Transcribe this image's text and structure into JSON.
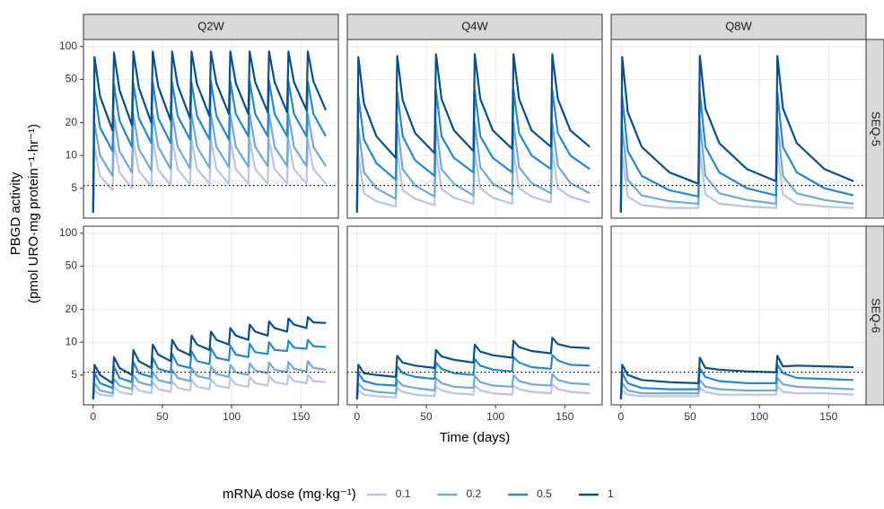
{
  "figure": {
    "ylabel": "PBGD activity",
    "ylabel2": "(pmol URO·mg protein⁻¹·hr⁻¹)",
    "xlabel": "Time (days)",
    "legend_title": "mRNA dose (mg·kg⁻¹)",
    "columns": [
      "Q2W",
      "Q4W",
      "Q8W"
    ],
    "rows": [
      "SEQ-5",
      "SEQ-6"
    ]
  },
  "chart_data": [
    {
      "type": "line",
      "log_y": true,
      "grid": true,
      "xlim": [
        -7,
        177
      ],
      "ylim": [
        2.66,
        116
      ],
      "xticks": [
        0,
        50,
        100,
        150
      ],
      "yticks": [
        5,
        10,
        20,
        50,
        100
      ],
      "hline": 5.3,
      "x": [
        0,
        1,
        5,
        14,
        15,
        19,
        28,
        29,
        33,
        42,
        43,
        47,
        56,
        57,
        61,
        70,
        71,
        75,
        84,
        85,
        89,
        98,
        99,
        103,
        112,
        113,
        117,
        126,
        127,
        131,
        140,
        141,
        145,
        154,
        155,
        159,
        168
      ],
      "series": [
        {
          "name": "0.1",
          "color": "#bcc6e3",
          "values": [
            3,
            12,
            6.5,
            4.8,
            13,
            7,
            5,
            13.5,
            7.2,
            5.2,
            14,
            7.4,
            5.3,
            14,
            7.5,
            5.4,
            14,
            7.5,
            5.5,
            14,
            7.5,
            5.5,
            14,
            7.5,
            5.5,
            14,
            7.5,
            5.5,
            14,
            7.5,
            5.5,
            14,
            7.5,
            5.5,
            14,
            7.5,
            5.5
          ]
        },
        {
          "name": "0.2",
          "color": "#74a9d4",
          "values": [
            3,
            20,
            10,
            6.5,
            23,
            11,
            7,
            24,
            11.5,
            7.3,
            24,
            12,
            7.5,
            24,
            12,
            7.6,
            24,
            12,
            7.7,
            24,
            12,
            7.8,
            24,
            12,
            7.9,
            24,
            12,
            8,
            24,
            12,
            8,
            24,
            12,
            8,
            24,
            12,
            8
          ]
        },
        {
          "name": "0.5",
          "color": "#2b88c5",
          "values": [
            3,
            40,
            18,
            11,
            45,
            21,
            12,
            46,
            22,
            13,
            47,
            22,
            13,
            47,
            23,
            14,
            47,
            23,
            14,
            48,
            23,
            14,
            48,
            24,
            15,
            48,
            24,
            15,
            48,
            24,
            15,
            48,
            24,
            15,
            48,
            24,
            15
          ]
        },
        {
          "name": "1",
          "color": "#0b4f8a",
          "values": [
            3,
            80,
            35,
            17,
            88,
            40,
            19,
            90,
            42,
            20,
            90,
            43,
            21,
            90,
            44,
            22,
            90,
            45,
            23,
            90,
            46,
            24,
            90,
            46,
            24,
            90,
            47,
            25,
            90,
            47,
            25,
            90,
            47,
            26,
            90,
            48,
            26
          ]
        }
      ]
    },
    {
      "type": "line",
      "log_y": true,
      "grid": true,
      "xlim": [
        -7,
        177
      ],
      "ylim": [
        2.66,
        116
      ],
      "xticks": [
        0,
        50,
        100,
        150
      ],
      "yticks": [
        5,
        10,
        20,
        50,
        100
      ],
      "hline": 5.3,
      "x": [
        0,
        1,
        5,
        14,
        28,
        29,
        33,
        42,
        56,
        57,
        61,
        70,
        84,
        85,
        89,
        98,
        112,
        113,
        117,
        126,
        140,
        141,
        145,
        154,
        168
      ],
      "series": [
        {
          "name": "0.1",
          "color": "#bcc6e3",
          "values": [
            3,
            10,
            4.5,
            3.8,
            3.4,
            11,
            4.8,
            4,
            3.5,
            11,
            4.9,
            4.1,
            3.6,
            11,
            5,
            4.1,
            3.6,
            11,
            5,
            4.2,
            3.7,
            11,
            5,
            4.2,
            3.7
          ]
        },
        {
          "name": "0.2",
          "color": "#74a9d4",
          "values": [
            3,
            18,
            7,
            5,
            4,
            20,
            7.5,
            5.3,
            4.2,
            20,
            7.5,
            5.5,
            4.3,
            20,
            7.8,
            5.5,
            4.4,
            20,
            7.8,
            5.6,
            4.5,
            20,
            8,
            5.6,
            4.5
          ]
        },
        {
          "name": "0.5",
          "color": "#2b88c5",
          "values": [
            3,
            35,
            14,
            8.5,
            6,
            38,
            15,
            9,
            6.5,
            40,
            15,
            9.5,
            7,
            40,
            15,
            9.5,
            7,
            40,
            16,
            10,
            7.5,
            40,
            16,
            10,
            7.5
          ]
        },
        {
          "name": "1",
          "color": "#0b4f8a",
          "values": [
            3,
            80,
            30,
            15,
            9.5,
            82,
            32,
            16,
            10.5,
            85,
            33,
            17,
            11,
            85,
            33,
            17,
            11.5,
            85,
            33,
            17,
            12,
            85,
            33,
            17,
            12
          ]
        }
      ]
    },
    {
      "type": "line",
      "log_y": true,
      "grid": true,
      "xlim": [
        -7,
        177
      ],
      "ylim": [
        2.66,
        116
      ],
      "xticks": [
        0,
        50,
        100,
        150
      ],
      "yticks": [
        5,
        10,
        20,
        50,
        100
      ],
      "hline": 5.3,
      "x": [
        0,
        1,
        5,
        15,
        35,
        56,
        57,
        61,
        71,
        91,
        112,
        113,
        117,
        127,
        147,
        168
      ],
      "series": [
        {
          "name": "0.1",
          "color": "#bcc6e3",
          "values": [
            3,
            10,
            4.2,
            3.5,
            3.3,
            3.3,
            11,
            4.4,
            3.6,
            3.4,
            3.3,
            11,
            4.4,
            3.6,
            3.4,
            3.3
          ]
        },
        {
          "name": "0.2",
          "color": "#74a9d4",
          "values": [
            3,
            18,
            6,
            4.3,
            3.8,
            3.6,
            20,
            6.5,
            4.5,
            3.9,
            3.6,
            20,
            6.5,
            4.5,
            3.9,
            3.6
          ]
        },
        {
          "name": "0.5",
          "color": "#2b88c5",
          "values": [
            3,
            35,
            11,
            6.5,
            4.8,
            4.2,
            38,
            12,
            7,
            5,
            4.3,
            38,
            12,
            7,
            5,
            4.3
          ]
        },
        {
          "name": "1",
          "color": "#0b4f8a",
          "values": [
            3,
            80,
            25,
            12,
            7,
            5.5,
            82,
            27,
            13,
            7.5,
            5.8,
            82,
            27,
            13,
            7.5,
            5.8
          ]
        }
      ]
    },
    {
      "type": "line",
      "log_y": true,
      "grid": true,
      "xlim": [
        -7,
        177
      ],
      "ylim": [
        2.66,
        116
      ],
      "xticks": [
        0,
        50,
        100,
        150
      ],
      "yticks": [
        5,
        10,
        20,
        50,
        100
      ],
      "hline": 5.3,
      "x": [
        0,
        1,
        5,
        14,
        15,
        19,
        28,
        29,
        33,
        42,
        43,
        47,
        56,
        57,
        61,
        70,
        71,
        75,
        84,
        85,
        89,
        98,
        99,
        103,
        112,
        113,
        117,
        126,
        127,
        131,
        140,
        141,
        145,
        154,
        155,
        159,
        168
      ],
      "series": [
        {
          "name": "0.1",
          "color": "#bcc6e3",
          "values": [
            3,
            3.6,
            3.3,
            3.2,
            3.9,
            3.5,
            3.3,
            4.1,
            3.6,
            3.4,
            4.3,
            3.7,
            3.5,
            4.4,
            3.8,
            3.6,
            4.5,
            3.9,
            3.7,
            4.6,
            4,
            3.8,
            4.7,
            4.1,
            3.9,
            4.8,
            4.2,
            4,
            4.9,
            4.3,
            4.1,
            5,
            4.4,
            4.2,
            5,
            4.4,
            4.3
          ]
        },
        {
          "name": "0.2",
          "color": "#74a9d4",
          "values": [
            3,
            4.2,
            3.6,
            3.4,
            4.6,
            4,
            3.7,
            5,
            4.3,
            4,
            5.3,
            4.5,
            4.2,
            5.6,
            4.7,
            4.4,
            5.8,
            4.9,
            4.6,
            6,
            5.1,
            4.8,
            6.2,
            5.3,
            5,
            6.4,
            5.5,
            5.2,
            6.5,
            5.6,
            5.3,
            6.6,
            5.7,
            5.4,
            6.7,
            5.8,
            5.6
          ]
        },
        {
          "name": "0.5",
          "color": "#2b88c5",
          "values": [
            3,
            5.2,
            4.2,
            3.8,
            6,
            4.7,
            4.3,
            6.6,
            5.2,
            4.8,
            7.2,
            5.7,
            5.3,
            7.8,
            6.2,
            5.8,
            8.3,
            6.7,
            6.3,
            8.8,
            7.2,
            6.8,
            9.3,
            7.7,
            7.3,
            9.7,
            8.1,
            7.8,
            10,
            8.5,
            8.3,
            10.3,
            8.9,
            8.7,
            10.5,
            9.2,
            9
          ]
        },
        {
          "name": "1",
          "color": "#0b4f8a",
          "values": [
            3,
            6.2,
            5,
            4.2,
            7.3,
            5.8,
            5,
            8.5,
            6.7,
            5.8,
            9.5,
            7.7,
            6.7,
            10.5,
            8.6,
            7.6,
            11.5,
            9.5,
            8.5,
            12.5,
            10.5,
            9.5,
            13.5,
            11.5,
            10.5,
            14.5,
            12.5,
            11.5,
            15.5,
            13.5,
            12.5,
            16.5,
            14.5,
            13.5,
            17,
            15.2,
            15
          ]
        }
      ]
    },
    {
      "type": "line",
      "log_y": true,
      "grid": true,
      "xlim": [
        -7,
        177
      ],
      "ylim": [
        2.66,
        116
      ],
      "xticks": [
        0,
        50,
        100,
        150
      ],
      "yticks": [
        5,
        10,
        20,
        50,
        100
      ],
      "hline": 5.3,
      "x": [
        0,
        1,
        5,
        14,
        28,
        29,
        33,
        42,
        56,
        57,
        61,
        70,
        84,
        85,
        89,
        98,
        112,
        113,
        117,
        126,
        140,
        141,
        145,
        154,
        168
      ],
      "series": [
        {
          "name": "0.1",
          "color": "#bcc6e3",
          "values": [
            3,
            3.6,
            3.3,
            3.2,
            3.1,
            3.8,
            3.5,
            3.3,
            3.2,
            3.9,
            3.6,
            3.4,
            3.3,
            4,
            3.6,
            3.4,
            3.3,
            4,
            3.7,
            3.5,
            3.4,
            4.1,
            3.7,
            3.5,
            3.4
          ]
        },
        {
          "name": "0.2",
          "color": "#74a9d4",
          "values": [
            3,
            4.2,
            3.7,
            3.5,
            3.4,
            4.5,
            4,
            3.8,
            3.6,
            4.7,
            4.2,
            3.9,
            3.8,
            4.9,
            4.3,
            4,
            3.9,
            5,
            4.4,
            4.1,
            4,
            5.1,
            4.5,
            4.2,
            4.1
          ]
        },
        {
          "name": "0.5",
          "color": "#2b88c5",
          "values": [
            3,
            5.2,
            4.4,
            4.1,
            4,
            6,
            5.2,
            4.8,
            4.6,
            6.5,
            5.7,
            5.2,
            5,
            7,
            6.1,
            5.6,
            5.4,
            7.3,
            6.5,
            5.9,
            5.7,
            7.6,
            6.8,
            6.2,
            6.1
          ]
        },
        {
          "name": "1",
          "color": "#0b4f8a",
          "values": [
            3,
            6.2,
            5.2,
            5,
            4.8,
            7.5,
            6.5,
            6.1,
            5.8,
            8.5,
            7.4,
            6.9,
            6.5,
            9.5,
            8.2,
            7.6,
            7.2,
            10.3,
            9,
            8.3,
            7.9,
            11,
            9.6,
            9,
            8.8
          ]
        }
      ]
    },
    {
      "type": "line",
      "log_y": true,
      "grid": true,
      "xlim": [
        -7,
        177
      ],
      "ylim": [
        2.66,
        116
      ],
      "xticks": [
        0,
        50,
        100,
        150
      ],
      "yticks": [
        5,
        10,
        20,
        50,
        100
      ],
      "hline": 5.3,
      "x": [
        0,
        1,
        5,
        15,
        35,
        56,
        57,
        61,
        71,
        91,
        112,
        113,
        117,
        127,
        147,
        168
      ],
      "series": [
        {
          "name": "0.1",
          "color": "#bcc6e3",
          "values": [
            3,
            3.6,
            3.3,
            3.2,
            3.2,
            3.2,
            3.8,
            3.5,
            3.3,
            3.3,
            3.3,
            3.9,
            3.5,
            3.4,
            3.4,
            3.3
          ]
        },
        {
          "name": "0.2",
          "color": "#74a9d4",
          "values": [
            3,
            4.2,
            3.6,
            3.4,
            3.4,
            3.4,
            4.5,
            3.9,
            3.7,
            3.6,
            3.6,
            4.7,
            4.1,
            3.9,
            3.8,
            3.7
          ]
        },
        {
          "name": "0.5",
          "color": "#2b88c5",
          "values": [
            3,
            5.2,
            4.2,
            3.8,
            3.7,
            3.7,
            5.8,
            4.8,
            4.4,
            4.2,
            4.2,
            6.2,
            5.2,
            4.7,
            4.6,
            4.5
          ]
        },
        {
          "name": "1",
          "color": "#0b4f8a",
          "values": [
            3,
            6.2,
            5,
            4.5,
            4.3,
            4.2,
            7.2,
            5.8,
            5.6,
            5.4,
            5.3,
            7.5,
            6,
            6.1,
            6,
            5.9
          ]
        }
      ]
    }
  ]
}
